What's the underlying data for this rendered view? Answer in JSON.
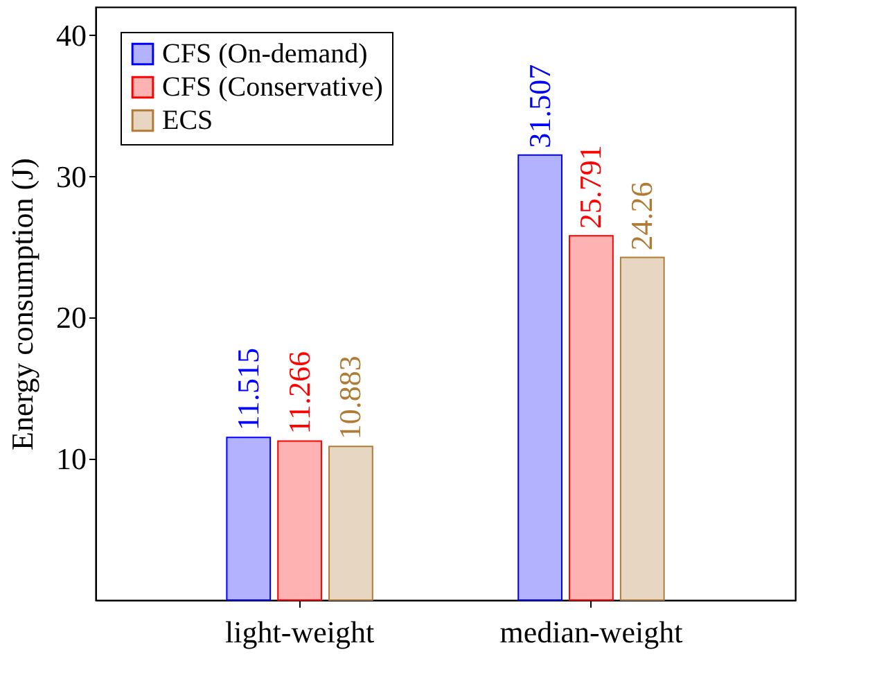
{
  "chart_data": {
    "type": "bar",
    "ylabel": "Energy consumption (J)",
    "categories": [
      "light-weight",
      "median-weight"
    ],
    "series": [
      {
        "name": "CFS (On-demand)",
        "color": "#0000ff",
        "values": [
          11.515,
          31.507
        ]
      },
      {
        "name": "CFS (Conservative)",
        "color": "#ff0000",
        "values": [
          11.266,
          25.791
        ]
      },
      {
        "name": "ECS",
        "color": "#b07b35",
        "values": [
          10.883,
          24.26
        ]
      }
    ],
    "ylim": [
      0,
      42
    ],
    "yticks": [
      10,
      20,
      30,
      40
    ],
    "data_labels": true,
    "legend": "top left",
    "grid": false
  }
}
